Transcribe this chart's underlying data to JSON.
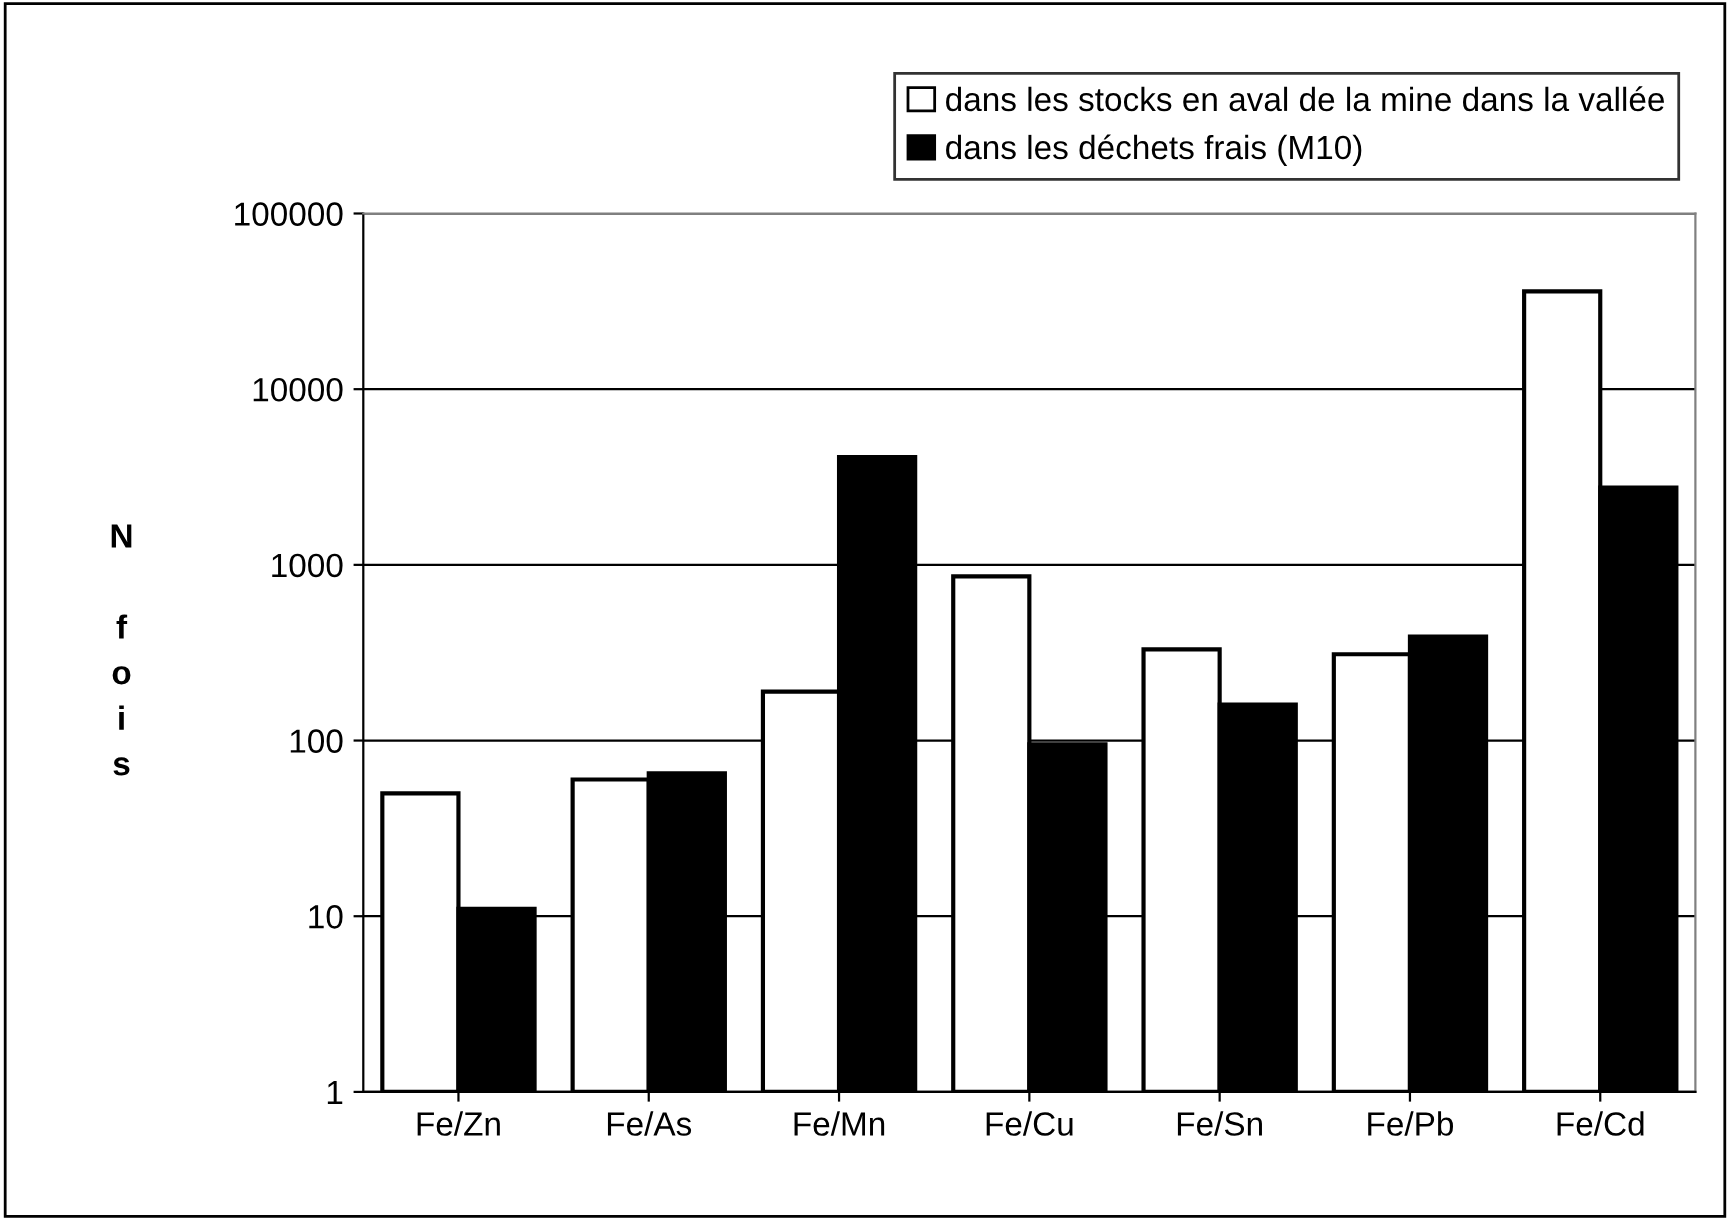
{
  "chart_data": {
    "type": "bar",
    "ylabel": "N fois",
    "categories": [
      "Fe/Zn",
      "Fe/As",
      "Fe/Mn",
      "Fe/Cu",
      "Fe/Sn",
      "Fe/Pb",
      "Fe/Cd"
    ],
    "series": [
      {
        "name": "dans les stocks en aval de la mine dans la vallée",
        "color": "#ffffff",
        "values": [
          50,
          60,
          190,
          860,
          330,
          310,
          36000
        ]
      },
      {
        "name": "dans les déchets frais (M10)",
        "color": "#000000",
        "values": [
          11,
          65,
          4100,
          95,
          160,
          390,
          2750
        ]
      }
    ],
    "log": true,
    "ylim": [
      1,
      100000
    ],
    "yticks": [
      1,
      10,
      100,
      1000,
      10000,
      100000
    ],
    "grid": "y",
    "legend": "top right"
  }
}
